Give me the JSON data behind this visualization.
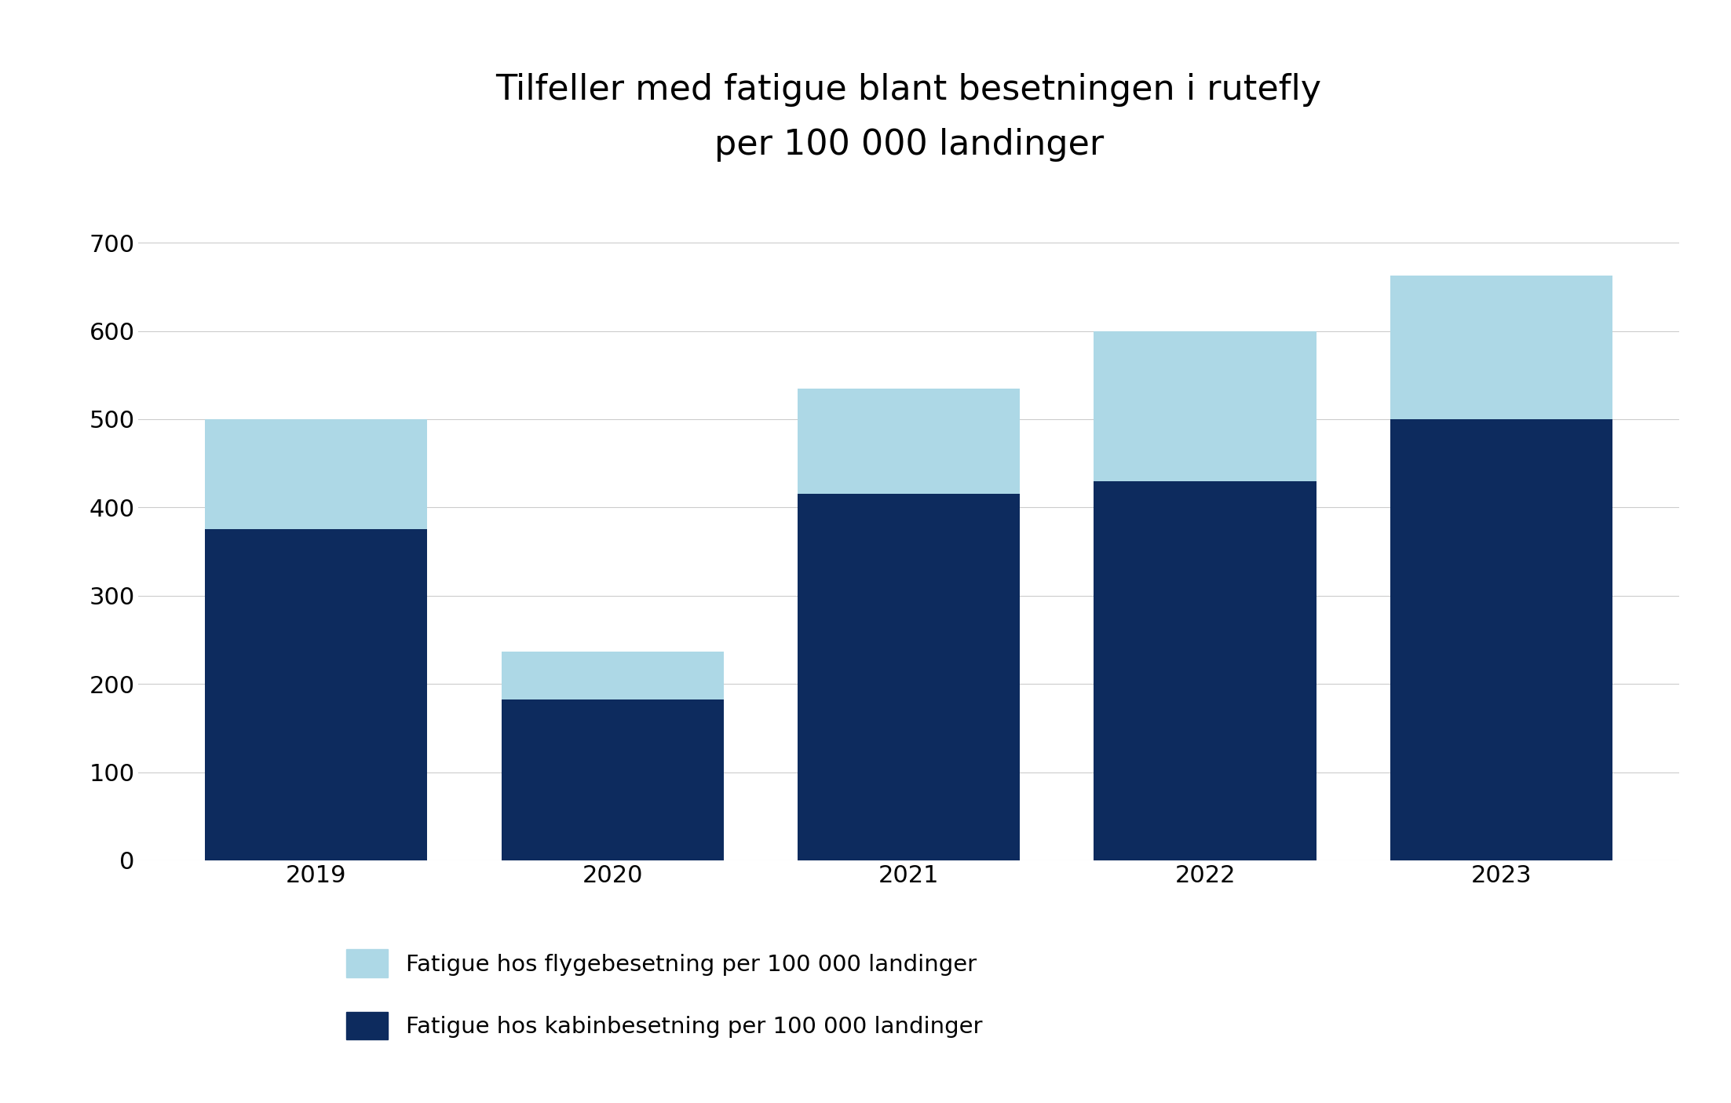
{
  "years": [
    "2019",
    "2020",
    "2021",
    "2022",
    "2023"
  ],
  "cabin_values": [
    375,
    182,
    415,
    430,
    500
  ],
  "flight_values": [
    125,
    55,
    120,
    170,
    163
  ],
  "cabin_color": "#0d2b5e",
  "flight_color": "#add8e6",
  "title_line1": "Tilfeller med fatigue blant besetningen i rutefly",
  "title_line2": "per 100 000 landinger",
  "legend_flight": "Fatigue hos flygebesetning per 100 000 landinger",
  "legend_cabin": "Fatigue hos kabinbesetning per 100 000 landinger",
  "ylim": [
    0,
    750
  ],
  "yticks": [
    0,
    100,
    200,
    300,
    400,
    500,
    600,
    700
  ],
  "background_color": "#ffffff",
  "title_fontsize": 32,
  "tick_fontsize": 22,
  "legend_fontsize": 21,
  "bar_width": 0.75
}
